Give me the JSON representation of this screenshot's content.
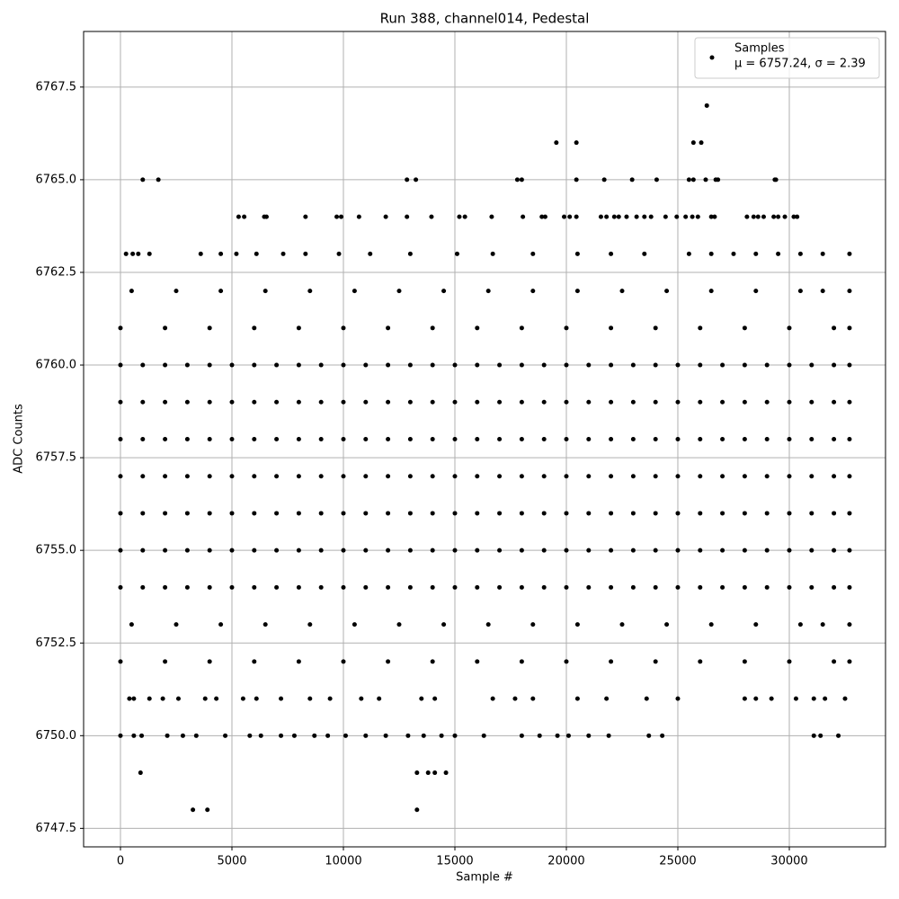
{
  "chart_data": {
    "type": "scatter",
    "title": "Run 388, channel014, Pedestal",
    "xlabel": "Sample #",
    "ylabel": "ADC Counts",
    "legend_annotation": "μ = 6757.24, σ = 2.39",
    "legend": "upper right",
    "grid": true,
    "xlim": [
      -1653,
      34315
    ],
    "ylim": [
      6747.0,
      6769.0
    ],
    "xticks": [
      0,
      5000,
      10000,
      15000,
      20000,
      25000,
      30000
    ],
    "yticks": [
      {
        "value": 6747.5,
        "label": "6747.5"
      },
      {
        "value": 6750,
        "label": "6750.0"
      },
      {
        "value": 6752.5,
        "label": "6752.5"
      },
      {
        "value": 6755,
        "label": "6755.0"
      },
      {
        "value": 6757.5,
        "label": "6757.5"
      },
      {
        "value": 6760,
        "label": "6760.0"
      },
      {
        "value": 6762.5,
        "label": "6762.5"
      },
      {
        "value": 6765,
        "label": "6765.0"
      },
      {
        "value": 6767.5,
        "label": "6767.5"
      }
    ],
    "x": [
      0,
      1000,
      2000,
      3000,
      4000,
      5000,
      6000,
      7000,
      8000,
      9000,
      10000,
      11000,
      12000,
      13000,
      14000,
      15000,
      16000,
      17000,
      18000,
      19000,
      20000,
      21000,
      22000,
      23000,
      24000,
      25000,
      26000,
      27000,
      28000,
      29000,
      30000,
      31000,
      32000,
      32700,
      0,
      1000,
      2000,
      3000,
      4000,
      5000,
      6000,
      7000,
      8000,
      9000,
      10000,
      11000,
      12000,
      13000,
      14000,
      15000,
      16000,
      17000,
      18000,
      19000,
      20000,
      21000,
      22000,
      23000,
      24000,
      25000,
      26000,
      27000,
      28000,
      29000,
      30000,
      31000,
      32000,
      32700,
      0,
      1000,
      2000,
      3000,
      4000,
      5000,
      6000,
      7000,
      8000,
      9000,
      10000,
      11000,
      12000,
      13000,
      14000,
      15000,
      16000,
      17000,
      18000,
      19000,
      20000,
      21000,
      22000,
      23000,
      24000,
      25000,
      26000,
      27000,
      28000,
      29000,
      30000,
      31000,
      32000,
      32700,
      0,
      1000,
      2000,
      3000,
      4000,
      5000,
      6000,
      7000,
      8000,
      9000,
      10000,
      11000,
      12000,
      13000,
      14000,
      15000,
      16000,
      17000,
      18000,
      19000,
      20000,
      21000,
      22000,
      23000,
      24000,
      25000,
      26000,
      27000,
      28000,
      29000,
      30000,
      31000,
      32000,
      32700,
      0,
      1000,
      2000,
      3000,
      4000,
      5000,
      6000,
      7000,
      8000,
      9000,
      10000,
      11000,
      12000,
      13000,
      14000,
      15000,
      16000,
      17000,
      18000,
      19000,
      20000,
      21000,
      22000,
      23000,
      24000,
      25000,
      26000,
      27000,
      28000,
      29000,
      30000,
      31000,
      32000,
      32700,
      0,
      1000,
      2000,
      3000,
      4000,
      5000,
      6000,
      7000,
      8000,
      9000,
      10000,
      11000,
      12000,
      13000,
      14000,
      15000,
      16000,
      17000,
      18000,
      19000,
      20000,
      21000,
      22000,
      23000,
      24000,
      25000,
      26000,
      27000,
      28000,
      29000,
      30000,
      31000,
      32000,
      32700,
      0,
      1000,
      2000,
      3000,
      4000,
      5000,
      6000,
      7000,
      8000,
      9000,
      10000,
      11000,
      12000,
      13000,
      14000,
      15000,
      16000,
      17000,
      18000,
      19000,
      20000,
      21000,
      22000,
      23000,
      24000,
      25000,
      26000,
      27000,
      28000,
      29000,
      30000,
      31000,
      32000,
      32700,
      0,
      2000,
      4000,
      6000,
      8000,
      10000,
      12000,
      14000,
      16000,
      18000,
      20000,
      22000,
      24000,
      26000,
      28000,
      30000,
      32000,
      32700,
      500,
      2500,
      4500,
      6500,
      8500,
      10500,
      12500,
      14500,
      16500,
      18500,
      20500,
      22500,
      24500,
      26500,
      28500,
      30500,
      31500,
      32700,
      0,
      2000,
      4000,
      6000,
      8000,
      10000,
      12000,
      14000,
      16000,
      18000,
      20000,
      22000,
      24000,
      26000,
      28000,
      30000,
      32000,
      32700,
      500,
      2500,
      4500,
      6500,
      8500,
      10500,
      12500,
      14500,
      16500,
      18500,
      20500,
      22500,
      24500,
      26500,
      28500,
      30500,
      31500,
      32700,
      250,
      550,
      800,
      1300,
      3600,
      4500,
      5200,
      6100,
      7300,
      8300,
      9800,
      11200,
      13000,
      15100,
      16700,
      18500,
      20500,
      22000,
      23500,
      25500,
      26500,
      27500,
      28500,
      29500,
      30500,
      31500,
      32700,
      400,
      600,
      1300,
      1900,
      2600,
      3800,
      4300,
      5500,
      6100,
      7200,
      8500,
      9400,
      10800,
      11600,
      13500,
      14100,
      16700,
      17700,
      18500,
      20500,
      21800,
      23600,
      25000,
      28000,
      28500,
      29200,
      30300,
      31100,
      31600,
      32500,
      0,
      600,
      950,
      2100,
      2800,
      3400,
      4700,
      5800,
      6300,
      7200,
      7800,
      8700,
      9300,
      10100,
      11000,
      11900,
      12900,
      13600,
      14400,
      15000,
      16300,
      18000,
      18800,
      19600,
      20100,
      21000,
      21900,
      23700,
      24300,
      31100,
      31400,
      32200,
      900,
      13300,
      13800,
      14100,
      14600,
      3250,
      3900,
      13300,
      5300,
      5550,
      6450,
      6550,
      8300,
      9700,
      9900,
      10700,
      11900,
      12850,
      13950,
      15200,
      15450,
      16650,
      18050,
      18900,
      19050,
      19900,
      20150,
      20450,
      21550,
      21800,
      22150,
      22350,
      22700,
      23150,
      23500,
      23800,
      24450,
      24950,
      25350,
      25650,
      25900,
      26500,
      26650,
      28100,
      28400,
      28600,
      28850,
      29300,
      29500,
      29800,
      30200,
      30350,
      1000,
      1700,
      12850,
      13250,
      17800,
      18000,
      20450,
      21700,
      22950,
      24050,
      25500,
      25700,
      26250,
      26700,
      26800,
      29350,
      29400,
      19550,
      20450,
      25700,
      26050,
      26300
    ],
    "series": [
      {
        "name": "Samples",
        "color": "#000000",
        "values": [
          6754,
          6754,
          6754,
          6754,
          6754,
          6754,
          6754,
          6754,
          6754,
          6754,
          6754,
          6754,
          6754,
          6754,
          6754,
          6754,
          6754,
          6754,
          6754,
          6754,
          6754,
          6754,
          6754,
          6754,
          6754,
          6754,
          6754,
          6754,
          6754,
          6754,
          6754,
          6754,
          6754,
          6754,
          6755,
          6755,
          6755,
          6755,
          6755,
          6755,
          6755,
          6755,
          6755,
          6755,
          6755,
          6755,
          6755,
          6755,
          6755,
          6755,
          6755,
          6755,
          6755,
          6755,
          6755,
          6755,
          6755,
          6755,
          6755,
          6755,
          6755,
          6755,
          6755,
          6755,
          6755,
          6755,
          6755,
          6755,
          6756,
          6756,
          6756,
          6756,
          6756,
          6756,
          6756,
          6756,
          6756,
          6756,
          6756,
          6756,
          6756,
          6756,
          6756,
          6756,
          6756,
          6756,
          6756,
          6756,
          6756,
          6756,
          6756,
          6756,
          6756,
          6756,
          6756,
          6756,
          6756,
          6756,
          6756,
          6756,
          6756,
          6756,
          6757,
          6757,
          6757,
          6757,
          6757,
          6757,
          6757,
          6757,
          6757,
          6757,
          6757,
          6757,
          6757,
          6757,
          6757,
          6757,
          6757,
          6757,
          6757,
          6757,
          6757,
          6757,
          6757,
          6757,
          6757,
          6757,
          6757,
          6757,
          6757,
          6757,
          6757,
          6757,
          6757,
          6757,
          6758,
          6758,
          6758,
          6758,
          6758,
          6758,
          6758,
          6758,
          6758,
          6758,
          6758,
          6758,
          6758,
          6758,
          6758,
          6758,
          6758,
          6758,
          6758,
          6758,
          6758,
          6758,
          6758,
          6758,
          6758,
          6758,
          6758,
          6758,
          6758,
          6758,
          6758,
          6758,
          6758,
          6758,
          6759,
          6759,
          6759,
          6759,
          6759,
          6759,
          6759,
          6759,
          6759,
          6759,
          6759,
          6759,
          6759,
          6759,
          6759,
          6759,
          6759,
          6759,
          6759,
          6759,
          6759,
          6759,
          6759,
          6759,
          6759,
          6759,
          6759,
          6759,
          6759,
          6759,
          6759,
          6759,
          6759,
          6759,
          6760,
          6760,
          6760,
          6760,
          6760,
          6760,
          6760,
          6760,
          6760,
          6760,
          6760,
          6760,
          6760,
          6760,
          6760,
          6760,
          6760,
          6760,
          6760,
          6760,
          6760,
          6760,
          6760,
          6760,
          6760,
          6760,
          6760,
          6760,
          6760,
          6760,
          6760,
          6760,
          6760,
          6760,
          6752,
          6752,
          6752,
          6752,
          6752,
          6752,
          6752,
          6752,
          6752,
          6752,
          6752,
          6752,
          6752,
          6752,
          6752,
          6752,
          6752,
          6752,
          6753,
          6753,
          6753,
          6753,
          6753,
          6753,
          6753,
          6753,
          6753,
          6753,
          6753,
          6753,
          6753,
          6753,
          6753,
          6753,
          6753,
          6753,
          6761,
          6761,
          6761,
          6761,
          6761,
          6761,
          6761,
          6761,
          6761,
          6761,
          6761,
          6761,
          6761,
          6761,
          6761,
          6761,
          6761,
          6761,
          6762,
          6762,
          6762,
          6762,
          6762,
          6762,
          6762,
          6762,
          6762,
          6762,
          6762,
          6762,
          6762,
          6762,
          6762,
          6762,
          6762,
          6762,
          6763,
          6763,
          6763,
          6763,
          6763,
          6763,
          6763,
          6763,
          6763,
          6763,
          6763,
          6763,
          6763,
          6763,
          6763,
          6763,
          6763,
          6763,
          6763,
          6763,
          6763,
          6763,
          6763,
          6763,
          6763,
          6763,
          6763,
          6751,
          6751,
          6751,
          6751,
          6751,
          6751,
          6751,
          6751,
          6751,
          6751,
          6751,
          6751,
          6751,
          6751,
          6751,
          6751,
          6751,
          6751,
          6751,
          6751,
          6751,
          6751,
          6751,
          6751,
          6751,
          6751,
          6751,
          6751,
          6751,
          6751,
          6750,
          6750,
          6750,
          6750,
          6750,
          6750,
          6750,
          6750,
          6750,
          6750,
          6750,
          6750,
          6750,
          6750,
          6750,
          6750,
          6750,
          6750,
          6750,
          6750,
          6750,
          6750,
          6750,
          6750,
          6750,
          6750,
          6750,
          6750,
          6750,
          6750,
          6750,
          6750,
          6749,
          6749,
          6749,
          6749,
          6749,
          6748,
          6748,
          6748,
          6764,
          6764,
          6764,
          6764,
          6764,
          6764,
          6764,
          6764,
          6764,
          6764,
          6764,
          6764,
          6764,
          6764,
          6764,
          6764,
          6764,
          6764,
          6764,
          6764,
          6764,
          6764,
          6764,
          6764,
          6764,
          6764,
          6764,
          6764,
          6764,
          6764,
          6764,
          6764,
          6764,
          6764,
          6764,
          6764,
          6764,
          6764,
          6764,
          6764,
          6764,
          6764,
          6764,
          6764,
          6765,
          6765,
          6765,
          6765,
          6765,
          6765,
          6765,
          6765,
          6765,
          6765,
          6765,
          6765,
          6765,
          6765,
          6765,
          6765,
          6765,
          6766,
          6766,
          6766,
          6766,
          6767
        ]
      }
    ]
  }
}
